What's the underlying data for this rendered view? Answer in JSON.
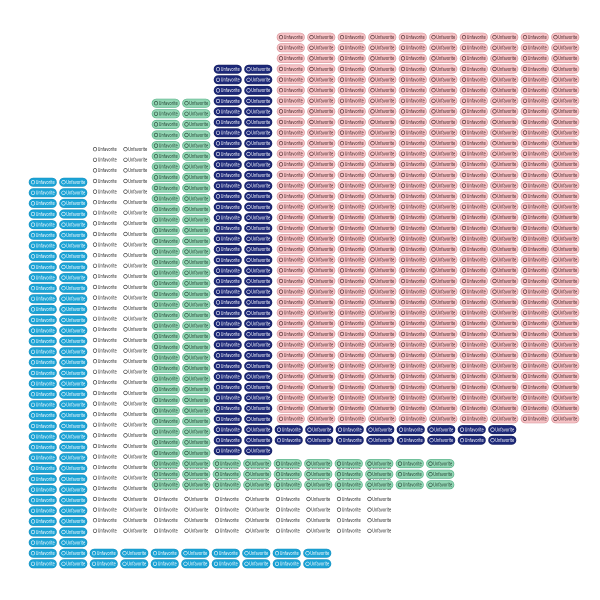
{
  "button_label": "Unfavorite"
}
